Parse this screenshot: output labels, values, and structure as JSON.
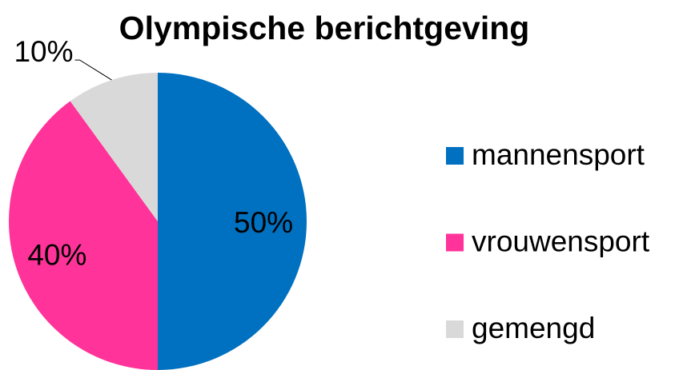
{
  "chart_data": {
    "type": "pie",
    "title": "Olympische berichtgeving",
    "categories": [
      "mannensport",
      "vrouwensport",
      "gemengd"
    ],
    "values": [
      50,
      40,
      10
    ],
    "value_labels": [
      "50%",
      "40%",
      "10%"
    ],
    "colors": [
      "#0070c0",
      "#ff3399",
      "#d9d9d9"
    ],
    "legend": "right"
  }
}
